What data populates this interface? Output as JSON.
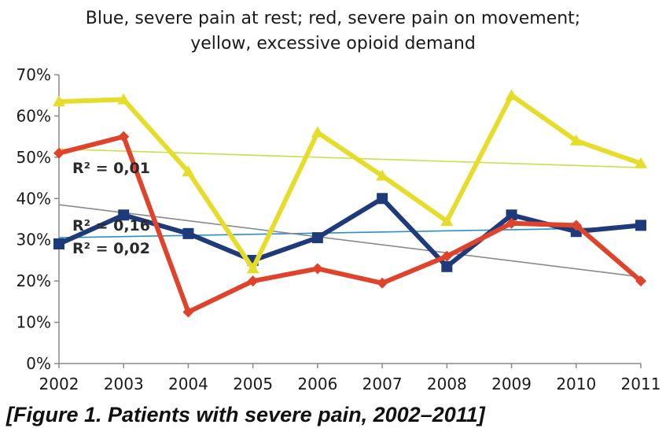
{
  "chart_data": {
    "type": "line",
    "title_lines": [
      "Blue, severe pain at rest; red, severe pain on movement;",
      "yellow, excessive opioid demand"
    ],
    "xlabel": "",
    "ylabel": "",
    "x": [
      "2002",
      "2003",
      "2004",
      "2005",
      "2006",
      "2007",
      "2008",
      "2009",
      "2010",
      "2011"
    ],
    "ylim": [
      0,
      70
    ],
    "yticks": [
      "0%",
      "10%",
      "20%",
      "30%",
      "40%",
      "50%",
      "60%",
      "70%"
    ],
    "grid": false,
    "series": [
      {
        "color": "#1f3a7a",
        "marker": "square",
        "values": [
          29,
          36,
          31.5,
          25,
          30.5,
          40,
          23.5,
          36,
          32,
          33.5
        ]
      },
      {
        "color": "#e0432c",
        "marker": "diamond",
        "values": [
          51,
          55,
          12.5,
          20,
          23,
          19.5,
          26,
          34,
          33.5,
          20
        ]
      },
      {
        "color": "#e6dc2a",
        "marker": "triangle",
        "values": [
          63.5,
          64,
          46.5,
          23,
          56,
          45.5,
          34.5,
          65,
          54,
          48.5
        ]
      }
    ],
    "trendlines": [
      {
        "color": "#2b8fc6",
        "start": 30.5,
        "end": 33
      },
      {
        "color": "#8a8a8a",
        "start": 38.5,
        "end": 21
      },
      {
        "color": "#c8e04a",
        "start": 52,
        "end": 47.5
      }
    ],
    "annotations": [
      "R² = 0,01",
      "R² = 0,16",
      "R² = 0,02"
    ]
  },
  "caption": "[Figure 1. Patients with severe pain, 2002–2011]"
}
